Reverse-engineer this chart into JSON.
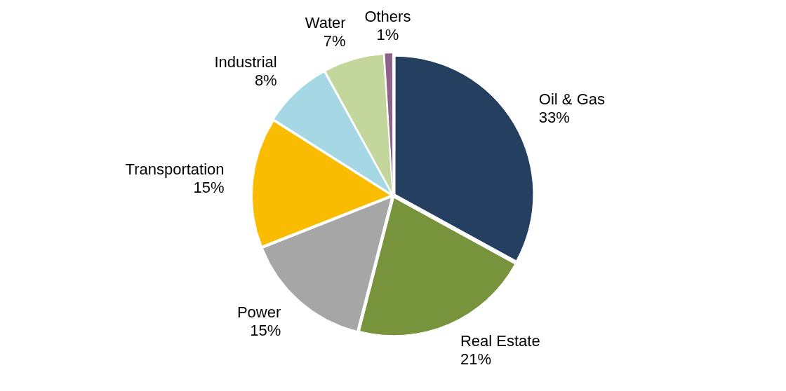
{
  "chart_data": {
    "type": "pie",
    "categories": [
      "Oil & Gas",
      "Real Estate",
      "Power",
      "Transportation",
      "Industrial",
      "Water",
      "Others"
    ],
    "values": [
      33,
      21,
      15,
      15,
      8,
      7,
      1
    ],
    "value_labels": [
      "33%",
      "21%",
      "15%",
      "15%",
      "8%",
      "7%",
      "1%"
    ],
    "colors": [
      "#243f60",
      "#77933c",
      "#a6a6a6",
      "#f9bc00",
      "#a5d8e4",
      "#c3d69b",
      "#8f6289"
    ],
    "legend": false
  }
}
